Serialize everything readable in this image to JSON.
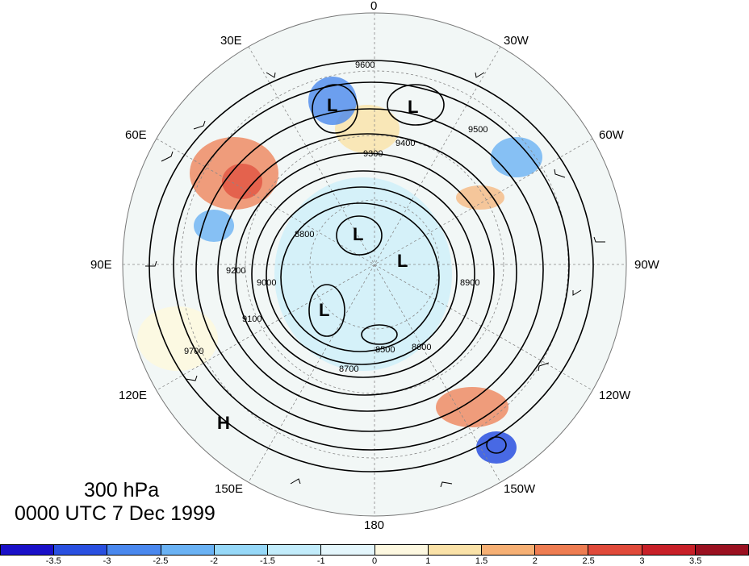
{
  "map": {
    "projection": "north polar stereographic",
    "level": "300 hPa",
    "time": "0000 UTC 7 Dec 1999",
    "longitude_labels": [
      "0",
      "30W",
      "60W",
      "90W",
      "120W",
      "150W",
      "180",
      "150E",
      "120E",
      "90E",
      "60E",
      "30E"
    ],
    "contour_labels": [
      "9600",
      "9500",
      "9400",
      "9300",
      "9200",
      "9100",
      "9000",
      "8900",
      "8800",
      "8700",
      "8600",
      "8500",
      "9700"
    ],
    "pressure_centers": [
      "L",
      "L",
      "L",
      "L",
      "L",
      "H"
    ],
    "colorbar": {
      "ticks": [
        "-3.5",
        "-3",
        "-2.5",
        "-2",
        "-1.5",
        "-1",
        "0",
        "1",
        "1.5",
        "2",
        "2.5",
        "3",
        "3.5"
      ],
      "colors": [
        "#1a10c8",
        "#2a50e0",
        "#4a88ee",
        "#6ab2f4",
        "#96d8f8",
        "#c2ecfb",
        "#e4f6fc",
        "#fdf8e0",
        "#fae2a8",
        "#f6b074",
        "#ee7d52",
        "#e04a3a",
        "#c82028",
        "#9a1020"
      ]
    }
  }
}
